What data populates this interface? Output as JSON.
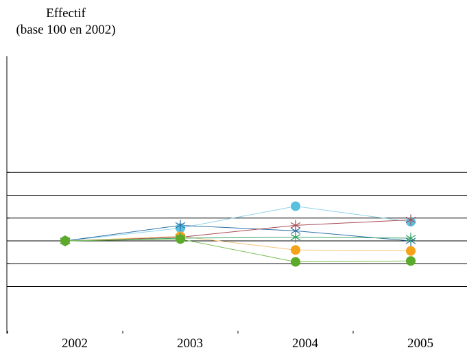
{
  "chart_data": {
    "type": "line",
    "ylabel_lines": [
      "Effectif",
      "(base 100 en 2002)"
    ],
    "x": [
      "2002",
      "2003",
      "2004",
      "2005"
    ],
    "ylim": [
      50,
      150
    ],
    "grid": true,
    "series": [
      {
        "marker": "circle",
        "color": "#5BC0DE",
        "line_color": "#8FD3E8",
        "values": [
          100,
          114,
          138,
          121
        ]
      },
      {
        "marker": "star",
        "color": "#2C6FA6",
        "line_color": "#2C6FA6",
        "values": [
          100,
          117,
          111,
          100
        ]
      },
      {
        "marker": "star",
        "color": "#A64A52",
        "line_color": "#A64A52",
        "values": [
          100,
          104,
          117,
          123
        ]
      },
      {
        "marker": "circle",
        "color": "#F5A21B",
        "line_color": "#F7C27A",
        "values": [
          100,
          105,
          90,
          89
        ]
      },
      {
        "marker": "star",
        "color": "#2E9E5B",
        "line_color": "#3DA56A",
        "values": [
          100,
          103,
          104,
          103
        ]
      },
      {
        "marker": "circle",
        "color": "#5BAA2A",
        "line_color": "#7BBF55",
        "values": [
          100,
          102,
          77,
          78
        ]
      }
    ]
  }
}
